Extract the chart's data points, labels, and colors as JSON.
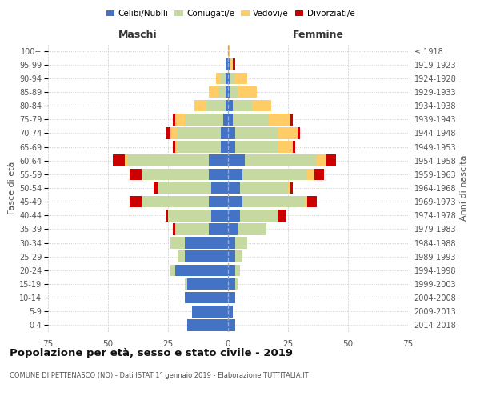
{
  "age_groups": [
    "0-4",
    "5-9",
    "10-14",
    "15-19",
    "20-24",
    "25-29",
    "30-34",
    "35-39",
    "40-44",
    "45-49",
    "50-54",
    "55-59",
    "60-64",
    "65-69",
    "70-74",
    "75-79",
    "80-84",
    "85-89",
    "90-94",
    "95-99",
    "100+"
  ],
  "birth_years": [
    "2014-2018",
    "2009-2013",
    "2004-2008",
    "1999-2003",
    "1994-1998",
    "1989-1993",
    "1984-1988",
    "1979-1983",
    "1974-1978",
    "1969-1973",
    "1964-1968",
    "1959-1963",
    "1954-1958",
    "1949-1953",
    "1944-1948",
    "1939-1943",
    "1934-1938",
    "1929-1933",
    "1924-1928",
    "1919-1923",
    "≤ 1918"
  ],
  "colors": {
    "celibi": "#4472C4",
    "coniugati": "#C5D9A0",
    "vedovi": "#FFCC66",
    "divorziati": "#CC0000"
  },
  "maschi": {
    "celibi": [
      17,
      15,
      18,
      17,
      22,
      18,
      18,
      8,
      7,
      8,
      7,
      8,
      8,
      3,
      3,
      2,
      1,
      1,
      1,
      1,
      0
    ],
    "coniugati": [
      0,
      0,
      0,
      1,
      2,
      3,
      6,
      14,
      18,
      28,
      22,
      28,
      34,
      18,
      18,
      16,
      8,
      3,
      2,
      0,
      0
    ],
    "vedovi": [
      0,
      0,
      0,
      0,
      0,
      0,
      0,
      0,
      0,
      0,
      0,
      0,
      1,
      1,
      3,
      4,
      5,
      4,
      2,
      0,
      0
    ],
    "divorziati": [
      0,
      0,
      0,
      0,
      0,
      0,
      0,
      1,
      1,
      5,
      2,
      5,
      5,
      1,
      2,
      1,
      0,
      0,
      0,
      0,
      0
    ]
  },
  "femmine": {
    "celibi": [
      3,
      2,
      3,
      3,
      3,
      3,
      3,
      4,
      5,
      6,
      5,
      6,
      7,
      3,
      3,
      2,
      2,
      1,
      1,
      1,
      0
    ],
    "coniugati": [
      0,
      0,
      0,
      1,
      2,
      3,
      5,
      12,
      16,
      26,
      20,
      27,
      30,
      18,
      18,
      15,
      8,
      3,
      2,
      0,
      0
    ],
    "vedovi": [
      0,
      0,
      0,
      0,
      0,
      0,
      0,
      0,
      0,
      1,
      1,
      3,
      4,
      6,
      8,
      9,
      8,
      8,
      5,
      1,
      1
    ],
    "divorziati": [
      0,
      0,
      0,
      0,
      0,
      0,
      0,
      0,
      3,
      4,
      1,
      4,
      4,
      1,
      1,
      1,
      0,
      0,
      0,
      1,
      0
    ]
  },
  "xlim": 75,
  "title": "Popolazione per età, sesso e stato civile - 2019",
  "subtitle": "COMUNE DI PETTENASCO (NO) - Dati ISTAT 1° gennaio 2019 - Elaborazione TUTTITALIA.IT",
  "xlabel_left": "Maschi",
  "xlabel_right": "Femmine",
  "ylabel_left": "Fasce di età",
  "ylabel_right": "Anni di nascita",
  "legend_labels": [
    "Celibi/Nubili",
    "Coniugati/e",
    "Vedovi/e",
    "Divorziati/e"
  ]
}
